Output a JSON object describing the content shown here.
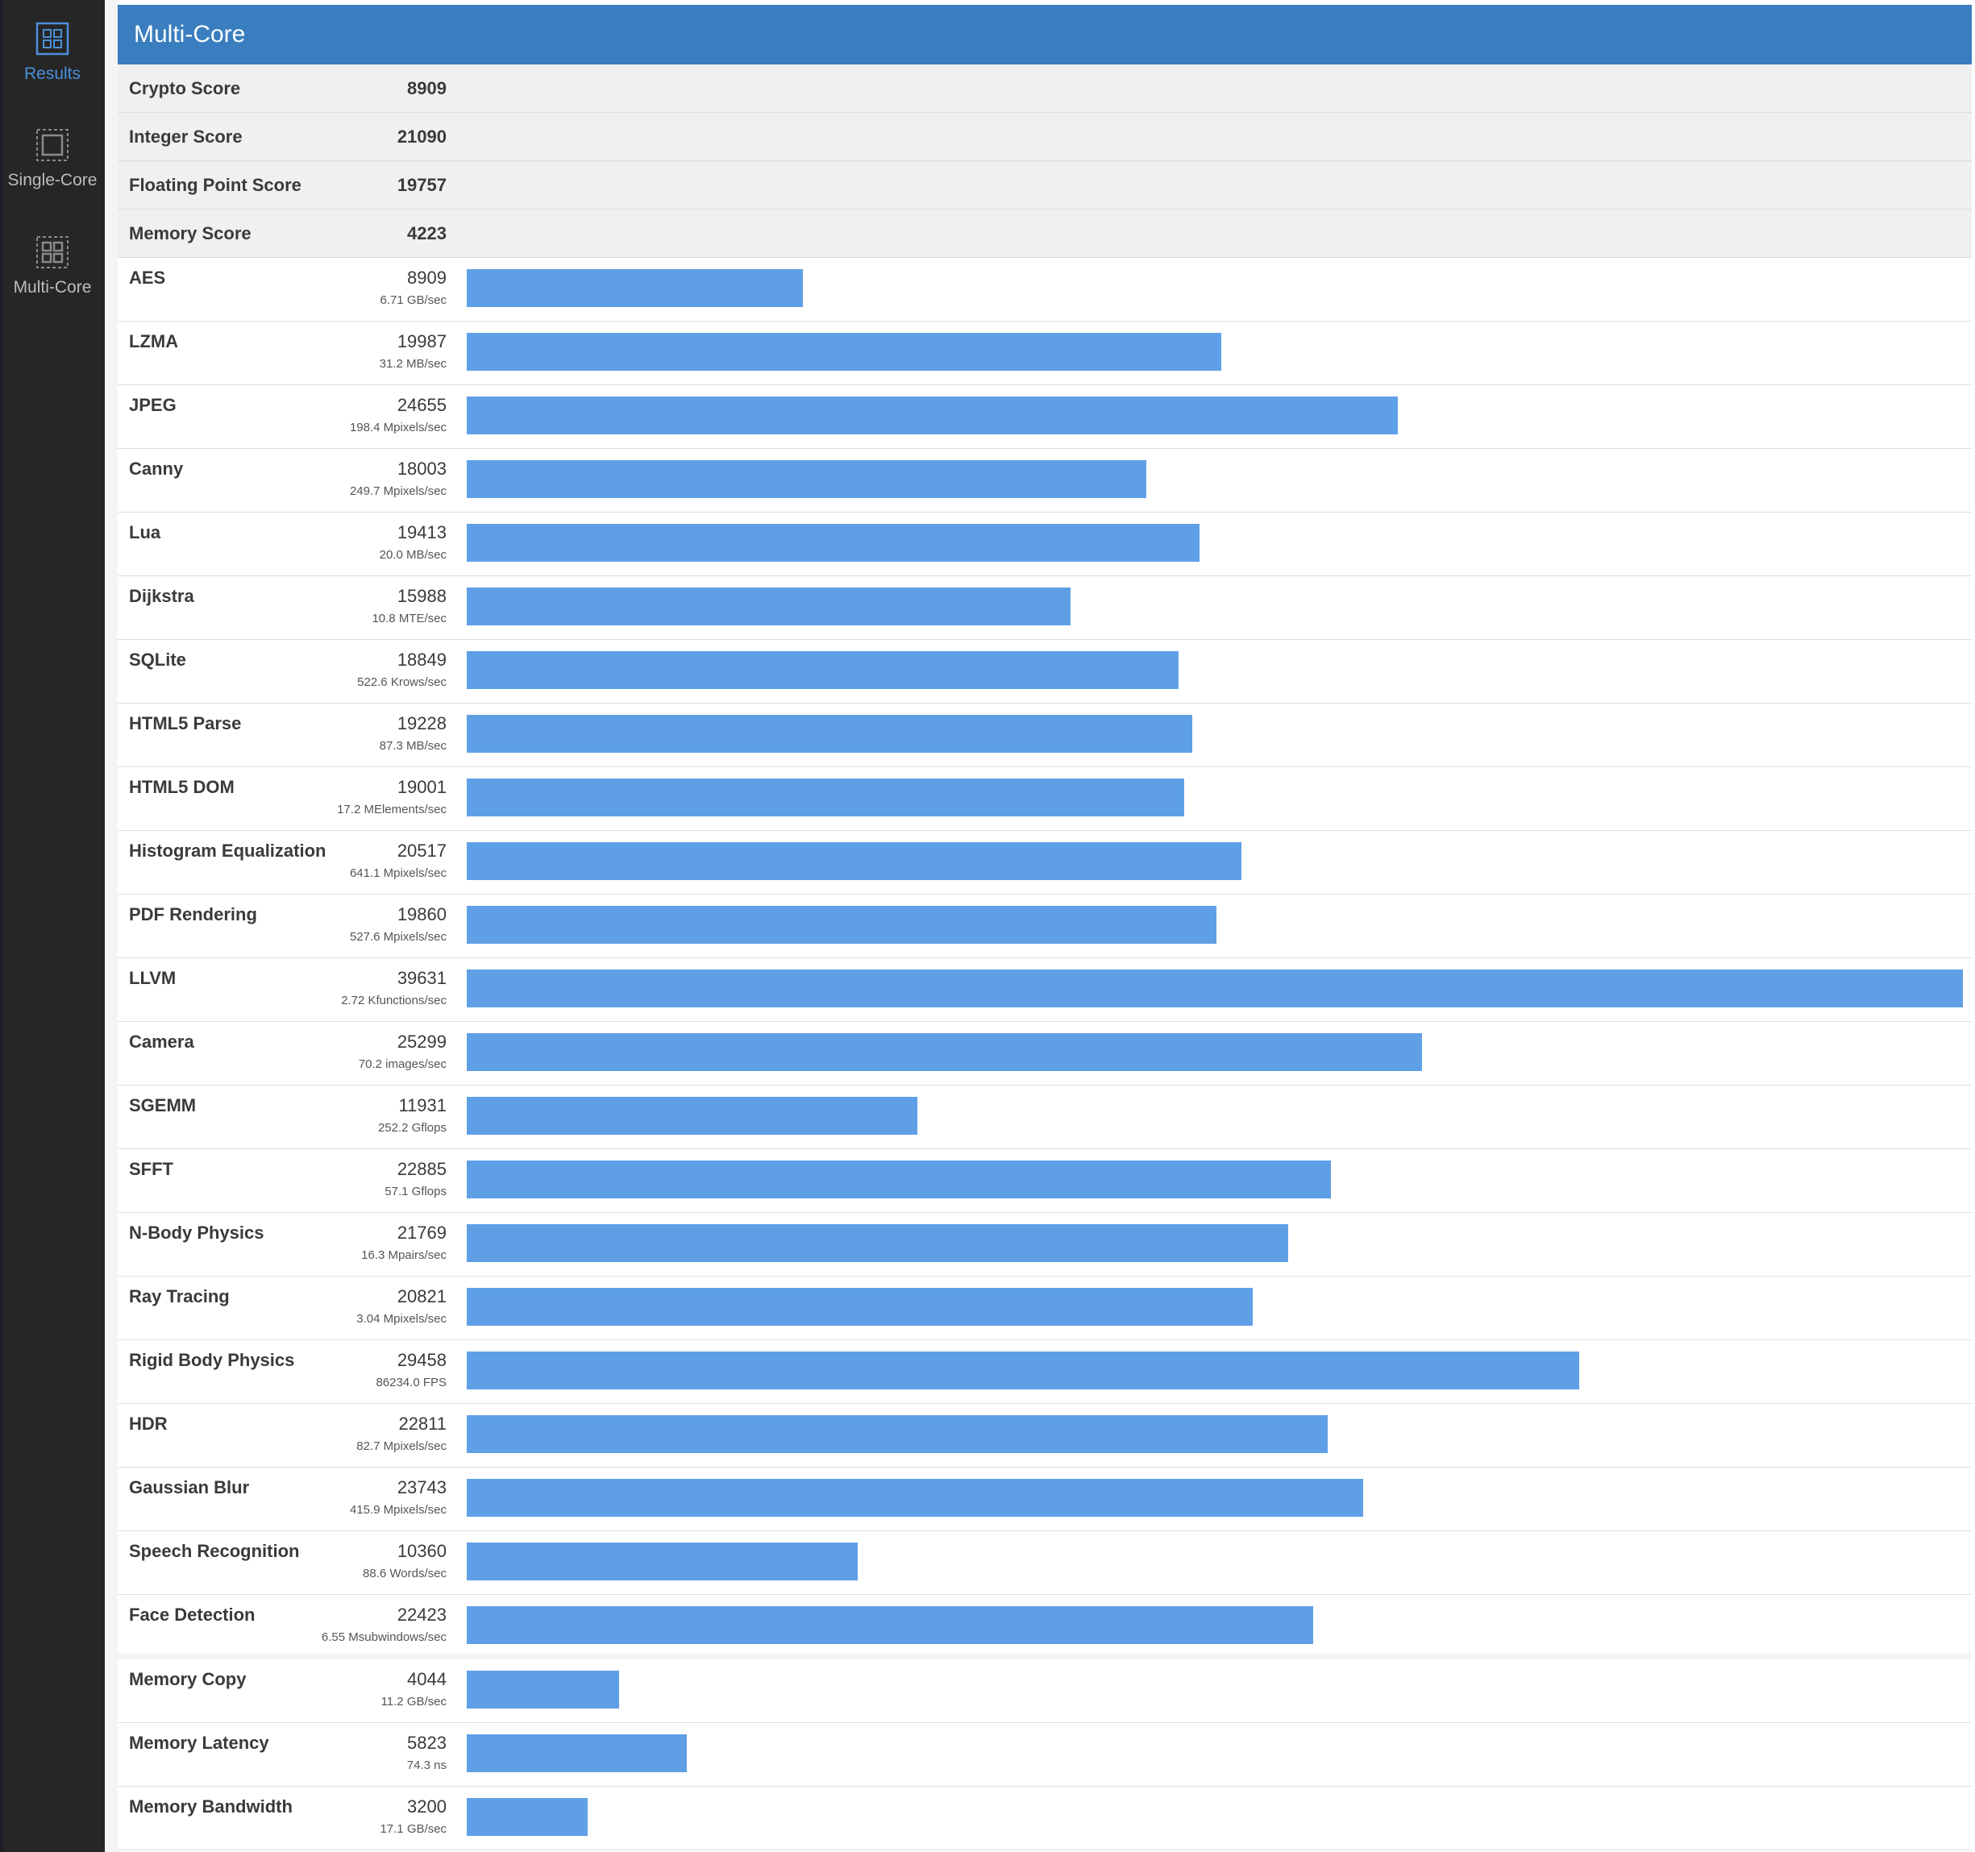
{
  "sidebar": {
    "items": [
      {
        "label": "Results",
        "icon": "results-icon",
        "active": true
      },
      {
        "label": "Single-Core",
        "icon": "single-core-icon",
        "active": false
      },
      {
        "label": "Multi-Core",
        "icon": "multi-core-icon",
        "active": false
      }
    ]
  },
  "header": {
    "title": "Multi-Core"
  },
  "colors": {
    "header": "#3a7ebf",
    "bar": "#5f9fe6",
    "sidebar": "#262626",
    "active_nav": "#4a90d9"
  },
  "scores": [
    {
      "name": "Crypto Score",
      "value": "8909"
    },
    {
      "name": "Integer Score",
      "value": "21090"
    },
    {
      "name": "Floating Point Score",
      "value": "19757"
    },
    {
      "name": "Memory Score",
      "value": "4223"
    }
  ],
  "chart_data": {
    "type": "bar",
    "orientation": "horizontal",
    "xlim": [
      0,
      39631
    ],
    "benchmarks": [
      {
        "name": "AES",
        "score": 8909,
        "rate": "6.71 GB/sec"
      },
      {
        "name": "LZMA",
        "score": 19987,
        "rate": "31.2 MB/sec"
      },
      {
        "name": "JPEG",
        "score": 24655,
        "rate": "198.4 Mpixels/sec"
      },
      {
        "name": "Canny",
        "score": 18003,
        "rate": "249.7 Mpixels/sec"
      },
      {
        "name": "Lua",
        "score": 19413,
        "rate": "20.0 MB/sec"
      },
      {
        "name": "Dijkstra",
        "score": 15988,
        "rate": "10.8 MTE/sec"
      },
      {
        "name": "SQLite",
        "score": 18849,
        "rate": "522.6 Krows/sec"
      },
      {
        "name": "HTML5 Parse",
        "score": 19228,
        "rate": "87.3 MB/sec"
      },
      {
        "name": "HTML5 DOM",
        "score": 19001,
        "rate": "17.2 MElements/sec"
      },
      {
        "name": "Histogram Equalization",
        "score": 20517,
        "rate": "641.1 Mpixels/sec"
      },
      {
        "name": "PDF Rendering",
        "score": 19860,
        "rate": "527.6 Mpixels/sec"
      },
      {
        "name": "LLVM",
        "score": 39631,
        "rate": "2.72 Kfunctions/sec"
      },
      {
        "name": "Camera",
        "score": 25299,
        "rate": "70.2 images/sec"
      },
      {
        "name": "SGEMM",
        "score": 11931,
        "rate": "252.2 Gflops"
      },
      {
        "name": "SFFT",
        "score": 22885,
        "rate": "57.1 Gflops"
      },
      {
        "name": "N-Body Physics",
        "score": 21769,
        "rate": "16.3 Mpairs/sec"
      },
      {
        "name": "Ray Tracing",
        "score": 20821,
        "rate": "3.04 Mpixels/sec"
      },
      {
        "name": "Rigid Body Physics",
        "score": 29458,
        "rate": "86234.0 FPS"
      },
      {
        "name": "HDR",
        "score": 22811,
        "rate": "82.7 Mpixels/sec"
      },
      {
        "name": "Gaussian Blur",
        "score": 23743,
        "rate": "415.9 Mpixels/sec"
      },
      {
        "name": "Speech Recognition",
        "score": 10360,
        "rate": "88.6 Words/sec"
      },
      {
        "name": "Face Detection",
        "score": 22423,
        "rate": "6.55 Msubwindows/sec"
      }
    ],
    "memory_benchmarks": [
      {
        "name": "Memory Copy",
        "score": 4044,
        "rate": "11.2 GB/sec"
      },
      {
        "name": "Memory Latency",
        "score": 5823,
        "rate": "74.3 ns"
      },
      {
        "name": "Memory Bandwidth",
        "score": 3200,
        "rate": "17.1 GB/sec"
      }
    ]
  }
}
